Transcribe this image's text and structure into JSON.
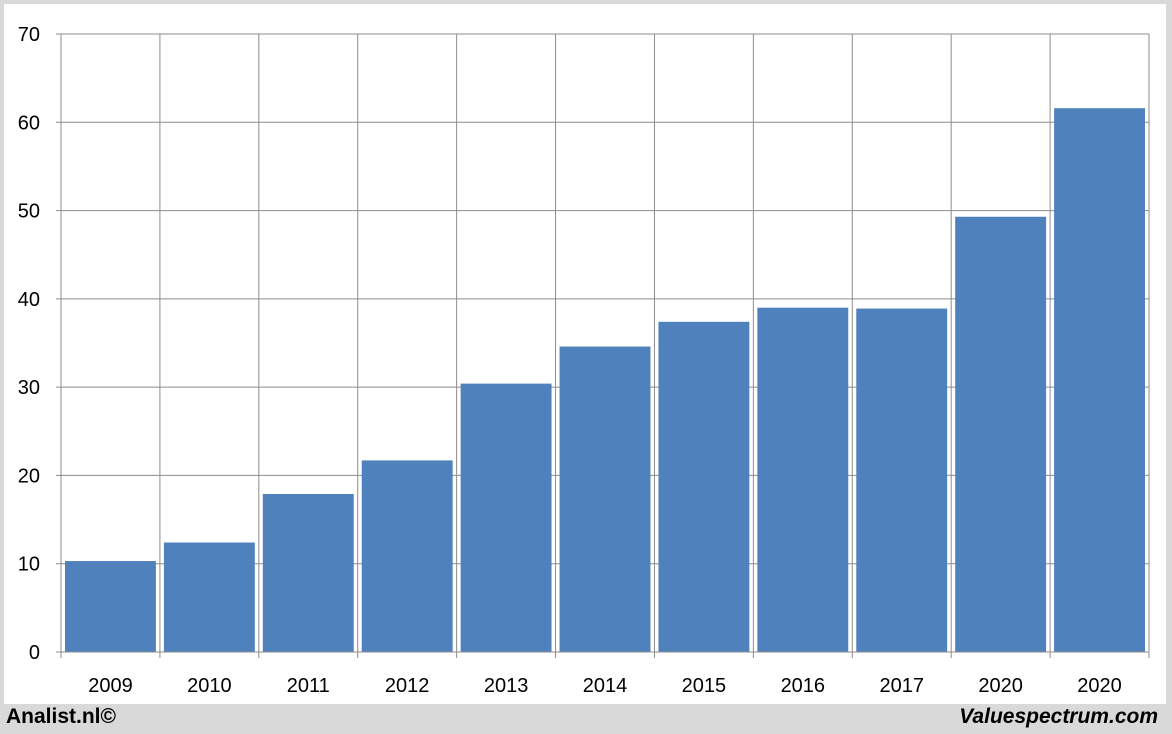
{
  "chart_data": {
    "type": "bar",
    "title": "",
    "xlabel": "",
    "ylabel": "",
    "categories": [
      "2009",
      "2010",
      "2011",
      "2012",
      "2013",
      "2014",
      "2015",
      "2016",
      "2017",
      "2020",
      "2020"
    ],
    "values": [
      10.3,
      12.4,
      17.9,
      21.7,
      30.4,
      34.6,
      37.4,
      39.0,
      38.9,
      49.3,
      61.6
    ],
    "ylim": [
      0,
      70
    ],
    "yticks": [
      0,
      10,
      20,
      30,
      40,
      50,
      60,
      70
    ],
    "grid": true,
    "bar_color": "#4f81bd"
  },
  "footer": {
    "left": "Analist.nl©",
    "right": "Valuespectrum.com"
  }
}
